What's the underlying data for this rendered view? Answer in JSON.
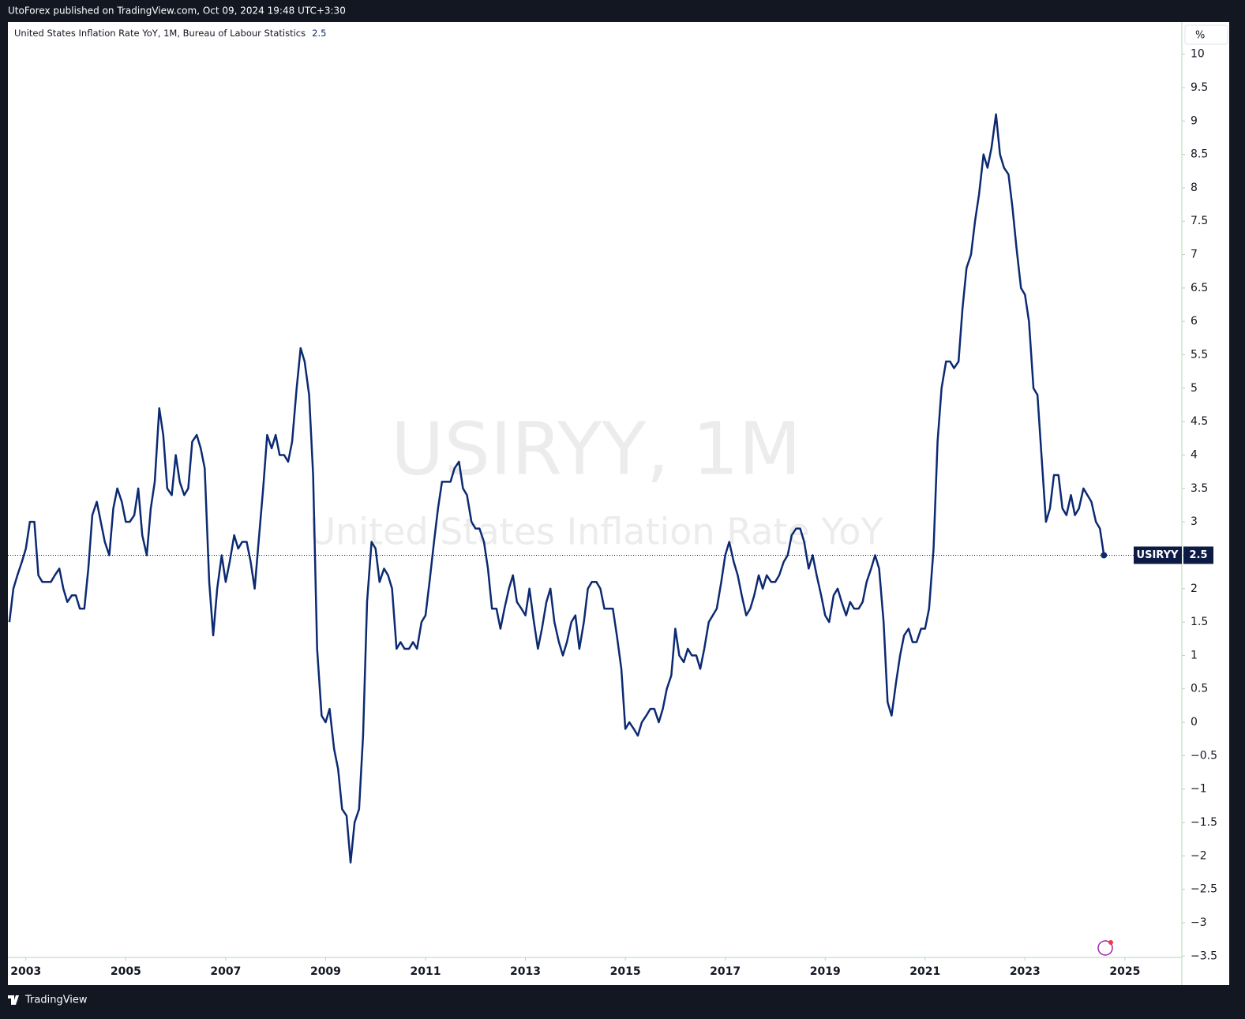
{
  "header": "UtoForex published on TradingView.com, Oct 09, 2024 19:48 UTC+3:30",
  "footer": "TradingView",
  "chart_data": {
    "type": "line",
    "legend_title": "United States Inflation Rate YoY, 1M, Bureau of Labour Statistics",
    "watermark_symbol": "USIRYY, 1M",
    "watermark_name": "United States Inflation Rate YoY",
    "unit": "%",
    "xlim": [
      2002.64,
      2026.14
    ],
    "xticks": [
      2003,
      2005,
      2007,
      2009,
      2011,
      2013,
      2015,
      2017,
      2019,
      2021,
      2023,
      2025
    ],
    "ylim": [
      -3.52,
      10.48
    ],
    "yticks": [
      {
        "value": -3.5,
        "label": "−3.5"
      },
      {
        "value": -3,
        "label": "−3"
      },
      {
        "value": -2.5,
        "label": "−2.5"
      },
      {
        "value": -2,
        "label": "−2"
      },
      {
        "value": -1.5,
        "label": "−1.5"
      },
      {
        "value": -1,
        "label": "−1"
      },
      {
        "value": -0.5,
        "label": "−0.5"
      },
      0,
      0.5,
      1,
      1.5,
      2,
      2.5,
      3,
      3.5,
      4,
      4.5,
      5,
      5.5,
      6,
      6.5,
      7,
      7.5,
      8,
      8.5,
      9,
      9.5,
      10
    ],
    "x": [
      2002.67,
      2002.75,
      2002.83,
      2002.92,
      2003.0,
      2003.08,
      2003.17,
      2003.25,
      2003.33,
      2003.42,
      2003.5,
      2003.58,
      2003.67,
      2003.75,
      2003.83,
      2003.92,
      2004.0,
      2004.08,
      2004.17,
      2004.25,
      2004.33,
      2004.42,
      2004.5,
      2004.58,
      2004.67,
      2004.75,
      2004.83,
      2004.92,
      2005.0,
      2005.08,
      2005.17,
      2005.25,
      2005.33,
      2005.42,
      2005.5,
      2005.58,
      2005.67,
      2005.75,
      2005.83,
      2005.92,
      2006.0,
      2006.08,
      2006.17,
      2006.25,
      2006.33,
      2006.42,
      2006.5,
      2006.58,
      2006.67,
      2006.75,
      2006.83,
      2006.92,
      2007.0,
      2007.08,
      2007.17,
      2007.25,
      2007.33,
      2007.42,
      2007.5,
      2007.58,
      2007.67,
      2007.75,
      2007.83,
      2007.92,
      2008.0,
      2008.08,
      2008.17,
      2008.25,
      2008.33,
      2008.42,
      2008.5,
      2008.58,
      2008.67,
      2008.75,
      2008.83,
      2008.92,
      2009.0,
      2009.08,
      2009.17,
      2009.25,
      2009.33,
      2009.42,
      2009.5,
      2009.58,
      2009.67,
      2009.75,
      2009.83,
      2009.92,
      2010.0,
      2010.08,
      2010.17,
      2010.25,
      2010.33,
      2010.42,
      2010.5,
      2010.58,
      2010.67,
      2010.75,
      2010.83,
      2010.92,
      2011.0,
      2011.08,
      2011.17,
      2011.25,
      2011.33,
      2011.42,
      2011.5,
      2011.58,
      2011.67,
      2011.75,
      2011.83,
      2011.92,
      2012.0,
      2012.08,
      2012.17,
      2012.25,
      2012.33,
      2012.42,
      2012.5,
      2012.58,
      2012.67,
      2012.75,
      2012.83,
      2012.92,
      2013.0,
      2013.08,
      2013.17,
      2013.25,
      2013.33,
      2013.42,
      2013.5,
      2013.58,
      2013.67,
      2013.75,
      2013.83,
      2013.92,
      2014.0,
      2014.08,
      2014.17,
      2014.25,
      2014.33,
      2014.42,
      2014.5,
      2014.58,
      2014.67,
      2014.75,
      2014.83,
      2014.92,
      2015.0,
      2015.08,
      2015.17,
      2015.25,
      2015.33,
      2015.42,
      2015.5,
      2015.58,
      2015.67,
      2015.75,
      2015.83,
      2015.92,
      2016.0,
      2016.08,
      2016.17,
      2016.25,
      2016.33,
      2016.42,
      2016.5,
      2016.58,
      2016.67,
      2016.75,
      2016.83,
      2016.92,
      2017.0,
      2017.08,
      2017.17,
      2017.25,
      2017.33,
      2017.42,
      2017.5,
      2017.58,
      2017.67,
      2017.75,
      2017.83,
      2017.92,
      2018.0,
      2018.08,
      2018.17,
      2018.25,
      2018.33,
      2018.42,
      2018.5,
      2018.58,
      2018.67,
      2018.75,
      2018.83,
      2018.92,
      2019.0,
      2019.08,
      2019.17,
      2019.25,
      2019.33,
      2019.42,
      2019.5,
      2019.58,
      2019.67,
      2019.75,
      2019.83,
      2019.92,
      2020.0,
      2020.08,
      2020.17,
      2020.25,
      2020.33,
      2020.42,
      2020.5,
      2020.58,
      2020.67,
      2020.75,
      2020.83,
      2020.92,
      2021.0,
      2021.08,
      2021.17,
      2021.25,
      2021.33,
      2021.42,
      2021.5,
      2021.58,
      2021.67,
      2021.75,
      2021.83,
      2021.92,
      2022.0,
      2022.08,
      2022.17,
      2022.25,
      2022.33,
      2022.42,
      2022.5,
      2022.58,
      2022.67,
      2022.75,
      2022.83,
      2022.92,
      2023.0,
      2023.08,
      2023.17,
      2023.25,
      2023.33,
      2023.42,
      2023.5,
      2023.58,
      2023.67,
      2023.75,
      2023.83,
      2023.92,
      2024.0,
      2024.08,
      2024.17,
      2024.25,
      2024.33,
      2024.42,
      2024.5,
      2024.58
    ],
    "series": [
      {
        "name": "USIRYY",
        "color": "#0c2a72",
        "values": [
          1.5,
          2.0,
          2.2,
          2.4,
          2.6,
          3.0,
          3.0,
          2.2,
          2.1,
          2.1,
          2.1,
          2.2,
          2.3,
          2.0,
          1.8,
          1.9,
          1.9,
          1.7,
          1.7,
          2.3,
          3.1,
          3.3,
          3.0,
          2.7,
          2.5,
          3.2,
          3.5,
          3.3,
          3.0,
          3.0,
          3.1,
          3.5,
          2.8,
          2.5,
          3.2,
          3.6,
          4.7,
          4.3,
          3.5,
          3.4,
          4.0,
          3.6,
          3.4,
          3.5,
          4.2,
          4.3,
          4.1,
          3.8,
          2.1,
          1.3,
          2.0,
          2.5,
          2.1,
          2.4,
          2.8,
          2.6,
          2.7,
          2.7,
          2.4,
          2.0,
          2.8,
          3.5,
          4.3,
          4.1,
          4.3,
          4.0,
          4.0,
          3.9,
          4.2,
          5.0,
          5.6,
          5.4,
          4.9,
          3.7,
          1.1,
          0.1,
          0.0,
          0.2,
          -0.4,
          -0.7,
          -1.3,
          -1.4,
          -2.1,
          -1.5,
          -1.3,
          -0.2,
          1.8,
          2.7,
          2.6,
          2.1,
          2.3,
          2.2,
          2.0,
          1.1,
          1.2,
          1.1,
          1.1,
          1.2,
          1.1,
          1.5,
          1.6,
          2.1,
          2.7,
          3.2,
          3.6,
          3.6,
          3.6,
          3.8,
          3.9,
          3.5,
          3.4,
          3.0,
          2.9,
          2.9,
          2.7,
          2.3,
          1.7,
          1.7,
          1.4,
          1.7,
          2.0,
          2.2,
          1.8,
          1.7,
          1.6,
          2.0,
          1.5,
          1.1,
          1.4,
          1.8,
          2.0,
          1.5,
          1.2,
          1.0,
          1.2,
          1.5,
          1.6,
          1.1,
          1.5,
          2.0,
          2.1,
          2.1,
          2.0,
          1.7,
          1.7,
          1.7,
          1.3,
          0.8,
          -0.1,
          0.0,
          -0.1,
          -0.2,
          0.0,
          0.1,
          0.2,
          0.2,
          0.0,
          0.2,
          0.5,
          0.7,
          1.4,
          1.0,
          0.9,
          1.1,
          1.0,
          1.0,
          0.8,
          1.1,
          1.5,
          1.6,
          1.7,
          2.1,
          2.5,
          2.7,
          2.4,
          2.2,
          1.9,
          1.6,
          1.7,
          1.9,
          2.2,
          2.0,
          2.2,
          2.1,
          2.1,
          2.2,
          2.4,
          2.5,
          2.8,
          2.9,
          2.9,
          2.7,
          2.3,
          2.5,
          2.2,
          1.9,
          1.6,
          1.5,
          1.9,
          2.0,
          1.8,
          1.6,
          1.8,
          1.7,
          1.7,
          1.8,
          2.1,
          2.3,
          2.5,
          2.3,
          1.5,
          0.3,
          0.1,
          0.6,
          1.0,
          1.3,
          1.4,
          1.2,
          1.2,
          1.4,
          1.4,
          1.7,
          2.6,
          4.2,
          5.0,
          5.4,
          5.4,
          5.3,
          5.4,
          6.2,
          6.8,
          7.0,
          7.5,
          7.9,
          8.5,
          8.3,
          8.6,
          9.1,
          8.5,
          8.3,
          8.2,
          7.7,
          7.1,
          6.5,
          6.4,
          6.0,
          5.0,
          4.9,
          4.0,
          3.0,
          3.2,
          3.7,
          3.7,
          3.2,
          3.1,
          3.4,
          3.1,
          3.2,
          3.5,
          3.4,
          3.3,
          3.0,
          2.9,
          2.5
        ]
      }
    ]
  }
}
